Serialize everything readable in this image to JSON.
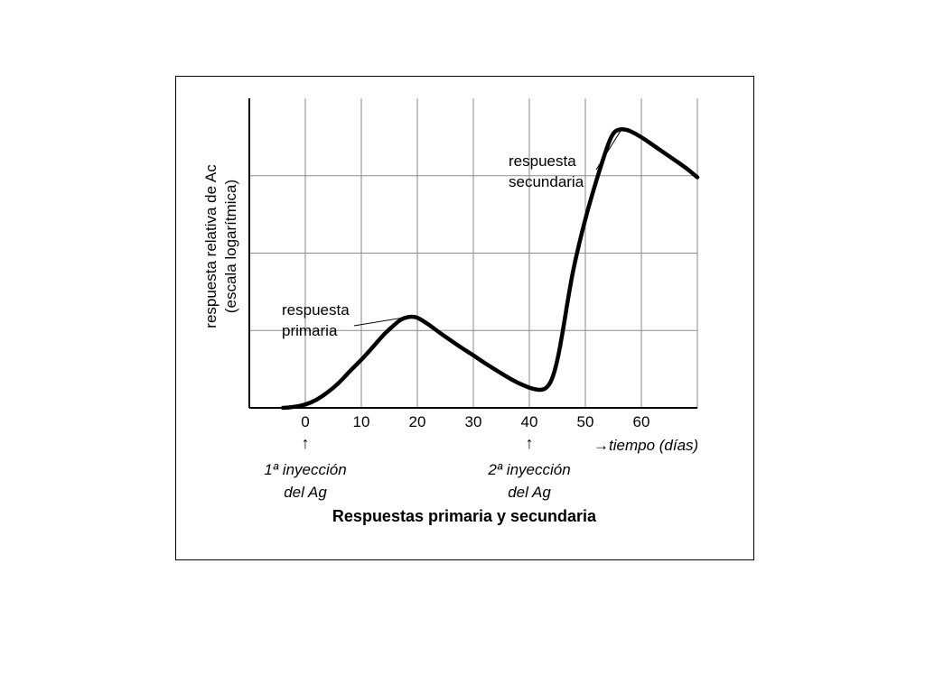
{
  "chart_data": {
    "type": "line",
    "title": "Respuestas primaria y secundaria",
    "ylabel": "respuesta relativa de Ac",
    "ylabel_sub": "(escala logarítmica)",
    "xlabel": "→tiempo (días)",
    "xlim": [
      -10,
      70
    ],
    "ylim": [
      0,
      4
    ],
    "y_scale": "log",
    "grid": true,
    "x_ticks": [
      "0",
      "10",
      "20",
      "30",
      "40",
      "50",
      "60"
    ],
    "x_tick_values": [
      0,
      10,
      20,
      30,
      40,
      50,
      60
    ],
    "series": [
      {
        "name": "",
        "x": [
          -4,
          -2,
          0,
          2,
          4,
          6,
          8,
          10,
          12,
          14,
          16,
          17,
          18,
          19,
          20,
          22,
          24,
          26,
          28,
          30,
          32,
          34,
          36,
          38,
          40,
          41,
          42,
          43,
          44,
          45,
          46,
          47,
          48,
          50,
          52,
          54,
          55,
          56,
          57,
          58,
          60,
          62,
          64,
          66,
          68,
          70
        ],
        "y": [
          0.0,
          0.01,
          0.04,
          0.1,
          0.2,
          0.32,
          0.48,
          0.62,
          0.78,
          0.95,
          1.08,
          1.14,
          1.17,
          1.18,
          1.17,
          1.08,
          0.97,
          0.87,
          0.77,
          0.68,
          0.58,
          0.49,
          0.4,
          0.32,
          0.26,
          0.24,
          0.23,
          0.25,
          0.35,
          0.6,
          1.0,
          1.45,
          1.85,
          2.45,
          2.95,
          3.4,
          3.56,
          3.6,
          3.6,
          3.58,
          3.5,
          3.4,
          3.3,
          3.2,
          3.1,
          2.98
        ]
      }
    ],
    "annotations": [
      {
        "text": [
          "respuesta",
          "primaria"
        ],
        "x": 20,
        "y": 1.18
      },
      {
        "text": [
          "respuesta",
          "secundaria"
        ],
        "x": 57,
        "y": 3.6
      },
      {
        "text": [
          "1ª inyección",
          "del Ag"
        ],
        "x": 0,
        "arrow": "↑"
      },
      {
        "text": [
          "2ª inyección",
          "del Ag"
        ],
        "x": 40,
        "arrow": "↑"
      }
    ]
  }
}
